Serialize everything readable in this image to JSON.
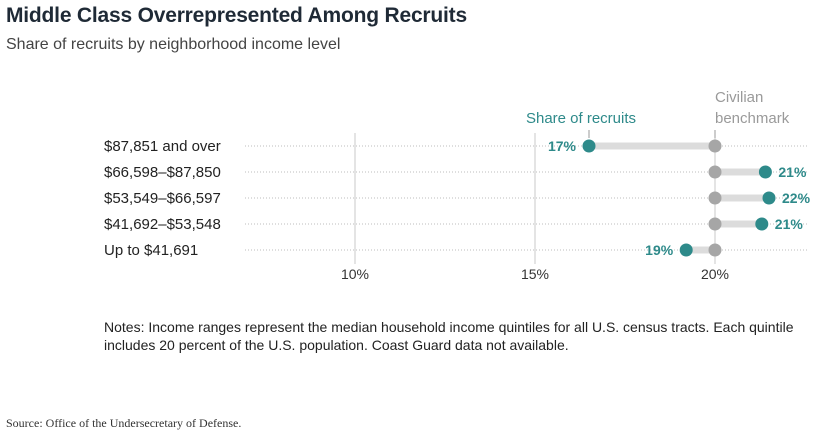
{
  "header": {
    "title": "Middle Class Overrepresented Among Recruits",
    "subtitle": "Share of recruits by neighborhood income level"
  },
  "notes": "Notes: Income ranges represent the median household income quintiles for all U.S. census tracts. Each quintile includes 20 percent of the U.S. population. Coast Guard data not available.",
  "source": "Source:  Office of the Undersecretary of Defense.",
  "colors": {
    "recruits": "#2e8a8a",
    "benchmark": "#a6a6a6",
    "connector": "#dcdcdc"
  },
  "chart_data": {
    "type": "dot",
    "title": "Middle Class Overrepresented Among Recruits",
    "subtitle": "Share of recruits by neighborhood income level",
    "categories": [
      "$87,851 and over",
      "$66,598–$87,850",
      "$53,549–$66,597",
      "$41,692–$53,548",
      "Up to $41,691"
    ],
    "series": [
      {
        "name": "Share of recruits",
        "values": [
          16.5,
          21.4,
          21.5,
          21.3,
          19.2
        ],
        "labels": [
          "17%",
          "21%",
          "22%",
          "21%",
          "19%"
        ]
      },
      {
        "name": "Civilian benchmark",
        "values": [
          20,
          20,
          20,
          20,
          20
        ]
      }
    ],
    "legend": {
      "recruits": "Share of recruits",
      "benchmark_line1": "Civilian",
      "benchmark_line2": "benchmark"
    },
    "xticks": [
      10,
      15,
      20
    ],
    "xtick_labels": [
      "10%",
      "15%",
      "20%"
    ],
    "xlim": [
      7,
      22.5
    ]
  }
}
